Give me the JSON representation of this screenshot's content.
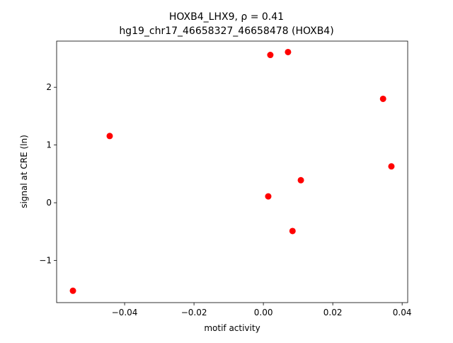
{
  "chart_data": {
    "type": "scatter",
    "title": "HOXB4_LHX9, ρ = 0.41",
    "subtitle": "hg19_chr17_46658327_46658478 (HOXB4)",
    "xlabel": "motif activity",
    "ylabel": "signal at CRE (ln)",
    "color": "#ff0000",
    "x": [
      -0.0549,
      -0.0443,
      0.002,
      0.0071,
      0.0345,
      0.0369,
      0.0108,
      0.0014,
      0.0084
    ],
    "values": [
      -1.525,
      1.156,
      2.56,
      2.61,
      1.8,
      0.63,
      0.39,
      0.11,
      -0.49
    ],
    "xlim": [
      -0.0596,
      0.0416
    ],
    "ylim": [
      -1.73,
      2.8
    ],
    "xticks": [
      {
        "value": -0.04,
        "label": "−0.04"
      },
      {
        "value": -0.02,
        "label": "−0.02"
      },
      {
        "value": 0,
        "label": "0.00"
      },
      0.02,
      0.04
    ],
    "yticks": [
      {
        "value": -1,
        "label": "−1"
      },
      0,
      1,
      2
    ],
    "grid": false
  }
}
